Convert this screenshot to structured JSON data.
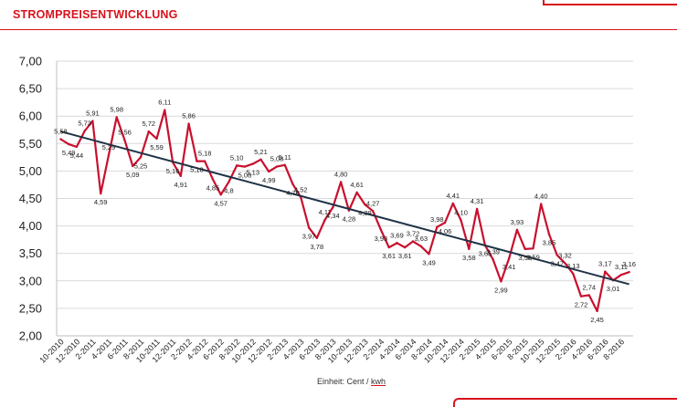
{
  "header": {
    "title": "STROMPREISENTWICKLUNG"
  },
  "footer": {
    "unit_prefix": "Einheit: Cent / ",
    "unit_word": "kwh"
  },
  "colors": {
    "brand_red": "#d9121c",
    "series_line": "#c8102e",
    "trend_line": "#1f3347",
    "grid": "#d9d9d9"
  },
  "chart_data": {
    "type": "line",
    "ylim": [
      2.0,
      7.0
    ],
    "ytick_labels": [
      "2,00",
      "2,50",
      "3,00",
      "3,50",
      "4,00",
      "4,50",
      "5,00",
      "5,50",
      "6,00",
      "6,50",
      "7,00"
    ],
    "x_tick_labels": [
      "10-2010",
      "12-2010",
      "2-2011",
      "4-2011",
      "6-2011",
      "8-2011",
      "10-2011",
      "12-2011",
      "2-2012",
      "4-2012",
      "6-2012",
      "8-2012",
      "10-2012",
      "12-2012",
      "2-2013",
      "4-2013",
      "6-2013",
      "8-2013",
      "10-2013",
      "12-2013",
      "2-2014",
      "4-2014",
      "6-2014",
      "8-2014",
      "10-2014",
      "12-2014",
      "2-2015",
      "4-2015",
      "6-2015",
      "8-2015",
      "10-2015",
      "12-2015",
      "2-2016",
      "4-2016",
      "6-2016",
      "8-2016"
    ],
    "grid": "horizontal",
    "legend": "none",
    "trendline": true,
    "series": [
      {
        "values": [
          5.58,
          5.49,
          5.44,
          5.73,
          5.91,
          4.59,
          5.29,
          5.98,
          5.56,
          5.09,
          5.25,
          5.72,
          5.59,
          6.11,
          5.16,
          4.91,
          5.86,
          5.18,
          5.18,
          4.85,
          4.57,
          4.8,
          5.1,
          5.08,
          5.13,
          5.21,
          4.99,
          5.08,
          5.11,
          4.76,
          4.52,
          3.97,
          3.78,
          4.11,
          4.34,
          4.8,
          4.28,
          4.61,
          4.39,
          4.27,
          3.93,
          3.61,
          3.69,
          3.61,
          3.72,
          3.63,
          3.49,
          3.98,
          4.06,
          4.41,
          4.1,
          3.58,
          4.31,
          3.65,
          3.39,
          2.99,
          3.41,
          3.93,
          3.58,
          3.59,
          4.4,
          3.85,
          3.47,
          3.32,
          3.13,
          2.72,
          2.74,
          2.45,
          3.17,
          3.01,
          3.11,
          3.16
        ],
        "labels": [
          "5,58",
          "5,49",
          "5,44",
          "5,73",
          "5,91",
          "4,59",
          "5,29",
          "5,98",
          "5,56",
          "5,09",
          "5,25",
          "5,72",
          "5,59",
          "6,11",
          "5,16",
          "4,91",
          "5,86",
          "5,18",
          "5,18",
          "4,85",
          "4,57",
          "4,8",
          "5,10",
          "5,08",
          "5,13",
          "5,21",
          "4,99",
          "5,08",
          "5,11",
          "4,76",
          "4,52",
          "3,97",
          "3,78",
          "4,11",
          "4,34",
          "4,80",
          "4,28",
          "4,61",
          "4,39",
          "4,27",
          "3,93",
          "3,61",
          "3,69",
          "3,61",
          "3,72",
          "3,63",
          "3,49",
          "3,98",
          "4,06",
          "4,41",
          "4,10",
          "3,58",
          "4,31",
          "3,65",
          "3,39",
          "2,99",
          "3,41",
          "3,93",
          "3,58",
          "3,59",
          "4,40",
          "3,85",
          "3,47",
          "3,32",
          "3,13",
          "2,72",
          "2,74",
          "2,45",
          "3,17",
          "3,01",
          "3,11",
          "3,16"
        ]
      }
    ],
    "trend": {
      "start": 5.72,
      "end": 2.94
    }
  }
}
